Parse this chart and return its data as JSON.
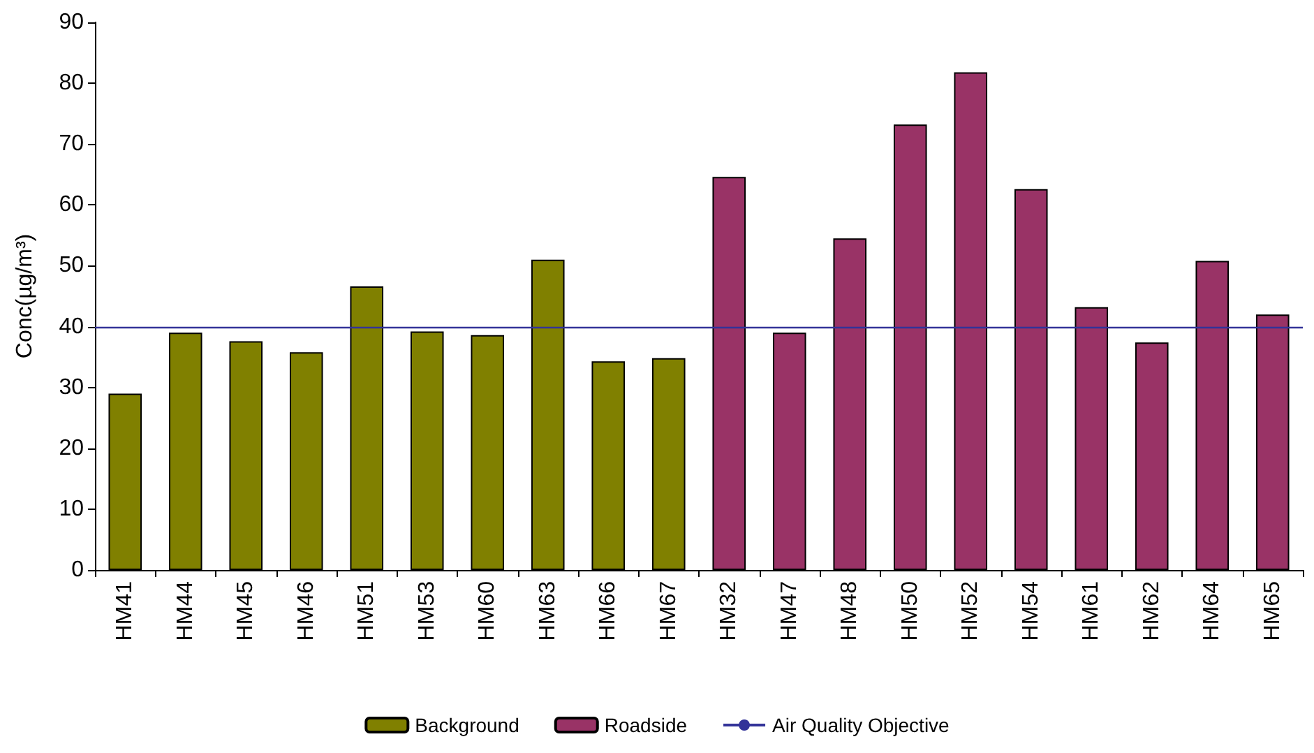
{
  "chart_data": {
    "type": "bar",
    "ylabel": "Conc(µg/m³)",
    "categories": [
      "HM41",
      "HM44",
      "HM45",
      "HM46",
      "HM51",
      "HM53",
      "HM60",
      "HM63",
      "HM66",
      "HM67",
      "HM32",
      "HM47",
      "HM48",
      "HM50",
      "HM52",
      "HM54",
      "HM61",
      "HM62",
      "HM64",
      "HM65"
    ],
    "stacked": true,
    "series": [
      {
        "name": "Background",
        "color": "#808000",
        "values": [
          29,
          39,
          37.6,
          35.8,
          46.6,
          39.2,
          38.6,
          51,
          34.3,
          34.8,
          null,
          null,
          null,
          null,
          null,
          null,
          null,
          null,
          null,
          null
        ]
      },
      {
        "name": "Roadside",
        "color": "#993366",
        "values": [
          null,
          null,
          null,
          null,
          null,
          null,
          null,
          null,
          null,
          null,
          64.6,
          39,
          54.5,
          73.2,
          81.8,
          62.6,
          43.2,
          37.4,
          50.8,
          42
        ]
      }
    ],
    "ref_lines": [
      {
        "axis": "y",
        "value": 40,
        "label": "Air Quality Objective",
        "color": "#333399",
        "line_style": "solid"
      }
    ],
    "ylim": [
      0,
      90
    ],
    "yticks": [
      0,
      10,
      20,
      30,
      40,
      50,
      60,
      70,
      80,
      90
    ],
    "grid": false,
    "legend": "bottom"
  }
}
